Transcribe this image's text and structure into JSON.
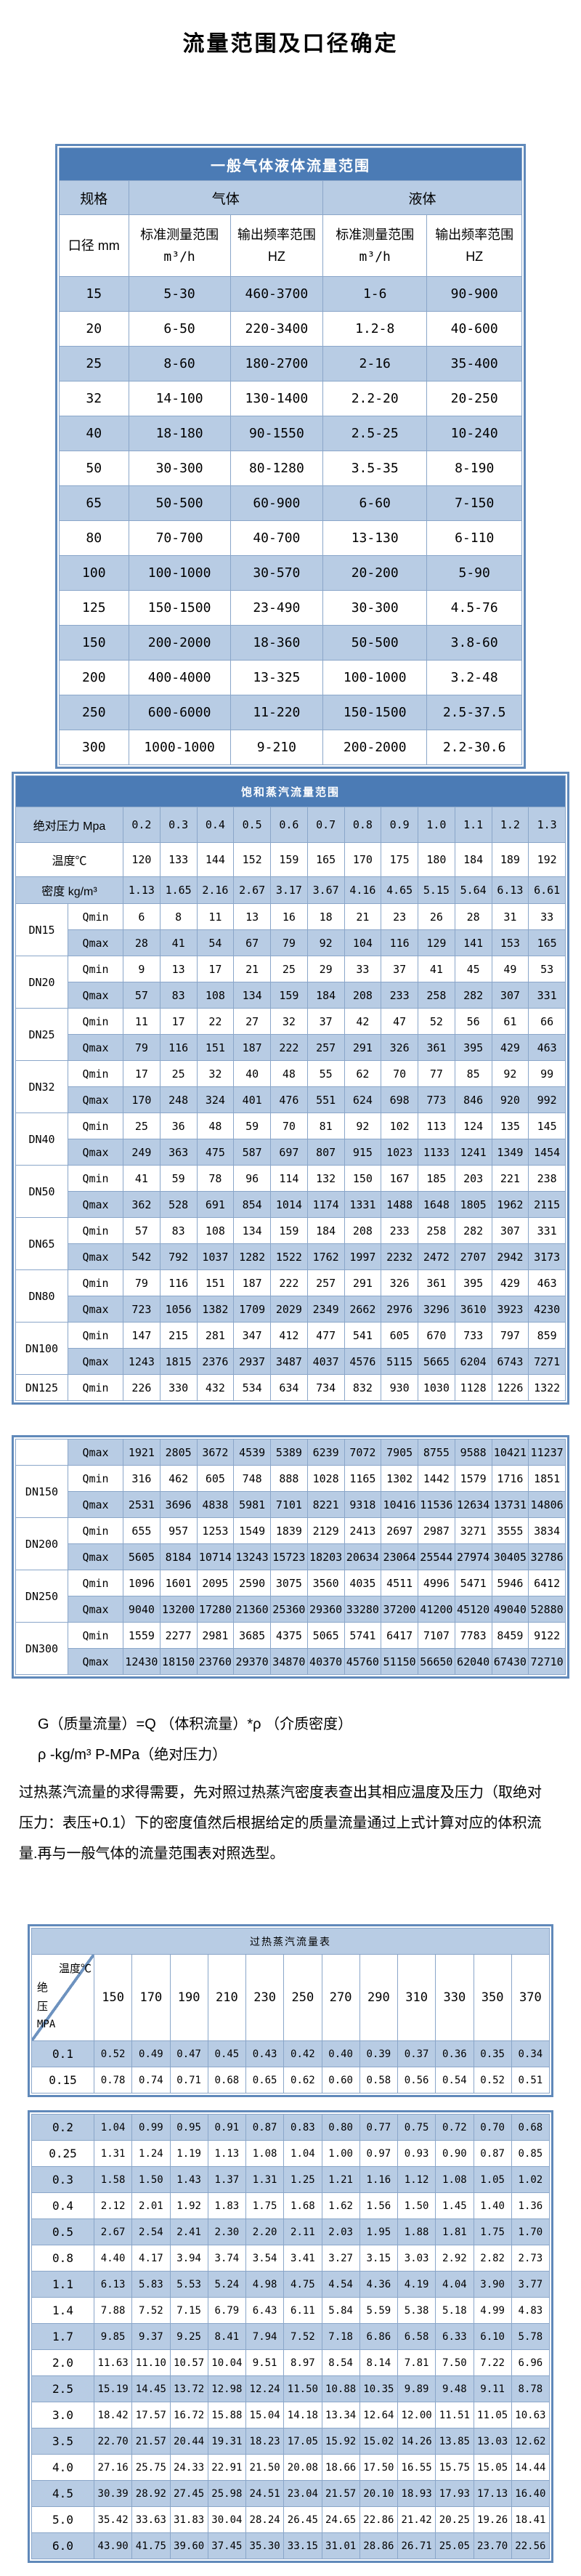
{
  "page": {
    "title": "流量范围及口径确定"
  },
  "colors": {
    "title_bar": "#4b7bb5",
    "light_blue": "#b8cce4",
    "grid": "#8aa6c9",
    "frame": "#6089ba"
  },
  "gas_liquid_table": {
    "title": "一般气体液体流量范围",
    "col_spec": "规格",
    "col_gas": "气体",
    "col_liquid": "液体",
    "col_diameter": "口径 mm",
    "col_range_label": "标准测量范围",
    "col_range_unit": "m³/h",
    "col_freq_label": "输出频率范围 HZ",
    "rows": [
      {
        "diameter": "15",
        "gas_range": "5-30",
        "gas_freq": "460-3700",
        "liquid_range": "1-6",
        "liquid_freq": "90-900"
      },
      {
        "diameter": "20",
        "gas_range": "6-50",
        "gas_freq": "220-3400",
        "liquid_range": "1.2-8",
        "liquid_freq": "40-600"
      },
      {
        "diameter": "25",
        "gas_range": "8-60",
        "gas_freq": "180-2700",
        "liquid_range": "2-16",
        "liquid_freq": "35-400"
      },
      {
        "diameter": "32",
        "gas_range": "14-100",
        "gas_freq": "130-1400",
        "liquid_range": "2.2-20",
        "liquid_freq": "20-250"
      },
      {
        "diameter": "40",
        "gas_range": "18-180",
        "gas_freq": "90-1550",
        "liquid_range": "2.5-25",
        "liquid_freq": "10-240"
      },
      {
        "diameter": "50",
        "gas_range": "30-300",
        "gas_freq": "80-1280",
        "liquid_range": "3.5-35",
        "liquid_freq": "8-190"
      },
      {
        "diameter": "65",
        "gas_range": "50-500",
        "gas_freq": "60-900",
        "liquid_range": "6-60",
        "liquid_freq": "7-150"
      },
      {
        "diameter": "80",
        "gas_range": "70-700",
        "gas_freq": "40-700",
        "liquid_range": "13-130",
        "liquid_freq": "6-110"
      },
      {
        "diameter": "100",
        "gas_range": "100-1000",
        "gas_freq": "30-570",
        "liquid_range": "20-200",
        "liquid_freq": "5-90"
      },
      {
        "diameter": "125",
        "gas_range": "150-1500",
        "gas_freq": "23-490",
        "liquid_range": "30-300",
        "liquid_freq": "4.5-76"
      },
      {
        "diameter": "150",
        "gas_range": "200-2000",
        "gas_freq": "18-360",
        "liquid_range": "50-500",
        "liquid_freq": "3.8-60"
      },
      {
        "diameter": "200",
        "gas_range": "400-4000",
        "gas_freq": "13-325",
        "liquid_range": "100-1000",
        "liquid_freq": "3.2-48"
      },
      {
        "diameter": "250",
        "gas_range": "600-6000",
        "gas_freq": "11-220",
        "liquid_range": "150-1500",
        "liquid_freq": "2.5-37.5"
      },
      {
        "diameter": "300",
        "gas_range": "1000-1000",
        "gas_freq": "9-210",
        "liquid_range": "200-2000",
        "liquid_freq": "2.2-30.6"
      }
    ]
  },
  "saturated_table": {
    "title": "饱和蒸汽流量范围",
    "pressure_label": "绝对压力 Mpa",
    "pressures": [
      "0.2",
      "0.3",
      "0.4",
      "0.5",
      "0.6",
      "0.7",
      "0.8",
      "0.9",
      "1.0",
      "1.1",
      "1.2",
      "1.3"
    ],
    "temperature_label": "温度℃",
    "temperatures": [
      "120",
      "133",
      "144",
      "152",
      "159",
      "165",
      "170",
      "175",
      "180",
      "184",
      "189",
      "192"
    ],
    "density_label": "密度 kg/m³",
    "densities": [
      "1.13",
      "1.65",
      "2.16",
      "2.67",
      "3.17",
      "3.67",
      "4.16",
      "4.65",
      "5.15",
      "5.64",
      "6.13",
      "6.61"
    ],
    "qmin_label": "Qmin",
    "qmax_label": "Qmax",
    "block1": [
      {
        "dn": "DN15",
        "qmin": [
          "6",
          "8",
          "11",
          "13",
          "16",
          "18",
          "21",
          "23",
          "26",
          "28",
          "31",
          "33"
        ],
        "qmax": [
          "28",
          "41",
          "54",
          "67",
          "79",
          "92",
          "104",
          "116",
          "129",
          "141",
          "153",
          "165"
        ]
      },
      {
        "dn": "DN20",
        "qmin": [
          "9",
          "13",
          "17",
          "21",
          "25",
          "29",
          "33",
          "37",
          "41",
          "45",
          "49",
          "53"
        ],
        "qmax": [
          "57",
          "83",
          "108",
          "134",
          "159",
          "184",
          "208",
          "233",
          "258",
          "282",
          "307",
          "331"
        ]
      },
      {
        "dn": "DN25",
        "qmin": [
          "11",
          "17",
          "22",
          "27",
          "32",
          "37",
          "42",
          "47",
          "52",
          "56",
          "61",
          "66"
        ],
        "qmax": [
          "79",
          "116",
          "151",
          "187",
          "222",
          "257",
          "291",
          "326",
          "361",
          "395",
          "429",
          "463"
        ]
      },
      {
        "dn": "DN32",
        "qmin": [
          "17",
          "25",
          "32",
          "40",
          "48",
          "55",
          "62",
          "70",
          "77",
          "85",
          "92",
          "99"
        ],
        "qmax": [
          "170",
          "248",
          "324",
          "401",
          "476",
          "551",
          "624",
          "698",
          "773",
          "846",
          "920",
          "992"
        ]
      },
      {
        "dn": "DN40",
        "qmin": [
          "25",
          "36",
          "48",
          "59",
          "70",
          "81",
          "92",
          "102",
          "113",
          "124",
          "135",
          "145"
        ],
        "qmax": [
          "249",
          "363",
          "475",
          "587",
          "697",
          "807",
          "915",
          "1023",
          "1133",
          "1241",
          "1349",
          "1454"
        ]
      },
      {
        "dn": "DN50",
        "qmin": [
          "41",
          "59",
          "78",
          "96",
          "114",
          "132",
          "150",
          "167",
          "185",
          "203",
          "221",
          "238"
        ],
        "qmax": [
          "362",
          "528",
          "691",
          "854",
          "1014",
          "1174",
          "1331",
          "1488",
          "1648",
          "1805",
          "1962",
          "2115"
        ]
      },
      {
        "dn": "DN65",
        "qmin": [
          "57",
          "83",
          "108",
          "134",
          "159",
          "184",
          "208",
          "233",
          "258",
          "282",
          "307",
          "331"
        ],
        "qmax": [
          "542",
          "792",
          "1037",
          "1282",
          "1522",
          "1762",
          "1997",
          "2232",
          "2472",
          "2707",
          "2942",
          "3173"
        ]
      },
      {
        "dn": "DN80",
        "qmin": [
          "79",
          "116",
          "151",
          "187",
          "222",
          "257",
          "291",
          "326",
          "361",
          "395",
          "429",
          "463"
        ],
        "qmax": [
          "723",
          "1056",
          "1382",
          "1709",
          "2029",
          "2349",
          "2662",
          "2976",
          "3296",
          "3610",
          "3923",
          "4230"
        ]
      },
      {
        "dn": "DN100",
        "qmin": [
          "147",
          "215",
          "281",
          "347",
          "412",
          "477",
          "541",
          "605",
          "670",
          "733",
          "797",
          "859"
        ],
        "qmax": [
          "1243",
          "1815",
          "2376",
          "2937",
          "3487",
          "4037",
          "4576",
          "5115",
          "5665",
          "6204",
          "6743",
          "7271"
        ]
      },
      {
        "dn": "DN125",
        "qmin": [
          "226",
          "330",
          "432",
          "534",
          "634",
          "734",
          "832",
          "930",
          "1030",
          "1128",
          "1226",
          "1322"
        ]
      }
    ],
    "block2_lead_qmax": [
      "1921",
      "2805",
      "3672",
      "4539",
      "5389",
      "6239",
      "7072",
      "7905",
      "8755",
      "9588",
      "10421",
      "11237"
    ],
    "block2": [
      {
        "dn": "DN150",
        "qmin": [
          "316",
          "462",
          "605",
          "748",
          "888",
          "1028",
          "1165",
          "1302",
          "1442",
          "1579",
          "1716",
          "1851"
        ],
        "qmax": [
          "2531",
          "3696",
          "4838",
          "5981",
          "7101",
          "8221",
          "9318",
          "10416",
          "11536",
          "12634",
          "13731",
          "14806"
        ]
      },
      {
        "dn": "DN200",
        "qmin": [
          "655",
          "957",
          "1253",
          "1549",
          "1839",
          "2129",
          "2413",
          "2697",
          "2987",
          "3271",
          "3555",
          "3834"
        ],
        "qmax": [
          "5605",
          "8184",
          "10714",
          "13243",
          "15723",
          "18203",
          "20634",
          "23064",
          "25544",
          "27974",
          "30405",
          "32786"
        ]
      },
      {
        "dn": "DN250",
        "qmin": [
          "1096",
          "1601",
          "2095",
          "2590",
          "3075",
          "3560",
          "4035",
          "4511",
          "4996",
          "5471",
          "5946",
          "6412"
        ],
        "qmax": [
          "9040",
          "13200",
          "17280",
          "21360",
          "25360",
          "29360",
          "33280",
          "37200",
          "41200",
          "45120",
          "49040",
          "52880"
        ]
      },
      {
        "dn": "DN300",
        "qmin": [
          "1559",
          "2277",
          "2981",
          "3685",
          "4375",
          "5065",
          "5741",
          "6417",
          "7107",
          "7783",
          "8459",
          "9122"
        ],
        "qmax": [
          "12430",
          "18150",
          "23760",
          "29370",
          "34870",
          "40370",
          "45760",
          "51150",
          "56650",
          "62040",
          "67430",
          "72710"
        ]
      }
    ]
  },
  "notes": {
    "formula": "G（质量流量）=Q （体积流量）*ρ （介质密度）",
    "units": "ρ -kg/m³ P-MPa（绝对压力）",
    "paragraph": "过热蒸汽流量的求得需要，先对照过热蒸汽密度表查出其相应温度及压力（取绝对压力：表压+0.1）下的密度值然后根据给定的质量流量通过上式计算对应的体积流量.再与一般气体的流量范围表对照选型。"
  },
  "superheated_table": {
    "title": "过热蒸汽流量表",
    "corner_temp_label": "温度℃",
    "corner_pressure_label": [
      "绝",
      "压",
      "MPA"
    ],
    "temperatures": [
      "150",
      "170",
      "190",
      "210",
      "230",
      "250",
      "270",
      "290",
      "310",
      "330",
      "350",
      "370"
    ],
    "block1": [
      {
        "pressure": "0.1",
        "values": [
          "0.52",
          "0.49",
          "0.47",
          "0.45",
          "0.43",
          "0.42",
          "0.40",
          "0.39",
          "0.37",
          "0.36",
          "0.35",
          "0.34"
        ]
      },
      {
        "pressure": "0.15",
        "values": [
          "0.78",
          "0.74",
          "0.71",
          "0.68",
          "0.65",
          "0.62",
          "0.60",
          "0.58",
          "0.56",
          "0.54",
          "0.52",
          "0.51"
        ]
      }
    ],
    "block2": [
      {
        "pressure": "0.2",
        "values": [
          "1.04",
          "0.99",
          "0.95",
          "0.91",
          "0.87",
          "0.83",
          "0.80",
          "0.77",
          "0.75",
          "0.72",
          "0.70",
          "0.68"
        ]
      },
      {
        "pressure": "0.25",
        "values": [
          "1.31",
          "1.24",
          "1.19",
          "1.13",
          "1.08",
          "1.04",
          "1.00",
          "0.97",
          "0.93",
          "0.90",
          "0.87",
          "0.85"
        ]
      },
      {
        "pressure": "0.3",
        "values": [
          "1.58",
          "1.50",
          "1.43",
          "1.37",
          "1.31",
          "1.25",
          "1.21",
          "1.16",
          "1.12",
          "1.08",
          "1.05",
          "1.02"
        ]
      },
      {
        "pressure": "0.4",
        "values": [
          "2.12",
          "2.01",
          "1.92",
          "1.83",
          "1.75",
          "1.68",
          "1.62",
          "1.56",
          "1.50",
          "1.45",
          "1.40",
          "1.36"
        ]
      },
      {
        "pressure": "0.5",
        "values": [
          "2.67",
          "2.54",
          "2.41",
          "2.30",
          "2.20",
          "2.11",
          "2.03",
          "1.95",
          "1.88",
          "1.81",
          "1.75",
          "1.70"
        ]
      },
      {
        "pressure": "0.8",
        "values": [
          "4.40",
          "4.17",
          "3.94",
          "3.74",
          "3.54",
          "3.41",
          "3.27",
          "3.15",
          "3.03",
          "2.92",
          "2.82",
          "2.73"
        ]
      },
      {
        "pressure": "1.1",
        "values": [
          "6.13",
          "5.83",
          "5.53",
          "5.24",
          "4.98",
          "4.75",
          "4.54",
          "4.36",
          "4.19",
          "4.04",
          "3.90",
          "3.77"
        ]
      },
      {
        "pressure": "1.4",
        "values": [
          "7.88",
          "7.52",
          "7.15",
          "6.79",
          "6.43",
          "6.11",
          "5.84",
          "5.59",
          "5.38",
          "5.18",
          "4.99",
          "4.83"
        ]
      },
      {
        "pressure": "1.7",
        "values": [
          "9.85",
          "9.37",
          "9.25",
          "8.41",
          "7.94",
          "7.52",
          "7.18",
          "6.86",
          "6.58",
          "6.33",
          "6.10",
          "5.78"
        ]
      },
      {
        "pressure": "2.0",
        "values": [
          "11.63",
          "11.10",
          "10.57",
          "10.04",
          "9.51",
          "8.97",
          "8.54",
          "8.14",
          "7.81",
          "7.50",
          "7.22",
          "6.96"
        ]
      },
      {
        "pressure": "2.5",
        "values": [
          "15.19",
          "14.45",
          "13.72",
          "12.98",
          "12.24",
          "11.50",
          "10.88",
          "10.35",
          "9.89",
          "9.48",
          "9.11",
          "8.78"
        ]
      },
      {
        "pressure": "3.0",
        "values": [
          "18.42",
          "17.57",
          "16.72",
          "15.88",
          "15.04",
          "14.18",
          "13.34",
          "12.64",
          "12.00",
          "11.51",
          "11.05",
          "10.63"
        ]
      },
      {
        "pressure": "3.5",
        "values": [
          "22.70",
          "21.57",
          "20.44",
          "19.31",
          "18.23",
          "17.05",
          "15.92",
          "15.02",
          "14.26",
          "13.85",
          "13.03",
          "12.62"
        ]
      },
      {
        "pressure": "4.0",
        "values": [
          "27.16",
          "25.75",
          "24.33",
          "22.91",
          "21.50",
          "20.08",
          "18.66",
          "17.50",
          "16.55",
          "15.75",
          "15.05",
          "14.44"
        ]
      },
      {
        "pressure": "4.5",
        "values": [
          "30.39",
          "28.92",
          "27.45",
          "25.98",
          "24.51",
          "23.04",
          "21.57",
          "20.10",
          "18.93",
          "17.93",
          "17.13",
          "16.40"
        ]
      },
      {
        "pressure": "5.0",
        "values": [
          "35.42",
          "33.63",
          "31.83",
          "30.04",
          "28.24",
          "26.45",
          "24.65",
          "22.86",
          "21.42",
          "20.25",
          "19.26",
          "18.41"
        ]
      },
      {
        "pressure": "6.0",
        "values": [
          "43.90",
          "41.75",
          "39.60",
          "37.45",
          "35.30",
          "33.15",
          "31.01",
          "28.86",
          "26.71",
          "25.05",
          "23.70",
          "22.56"
        ]
      }
    ]
  }
}
